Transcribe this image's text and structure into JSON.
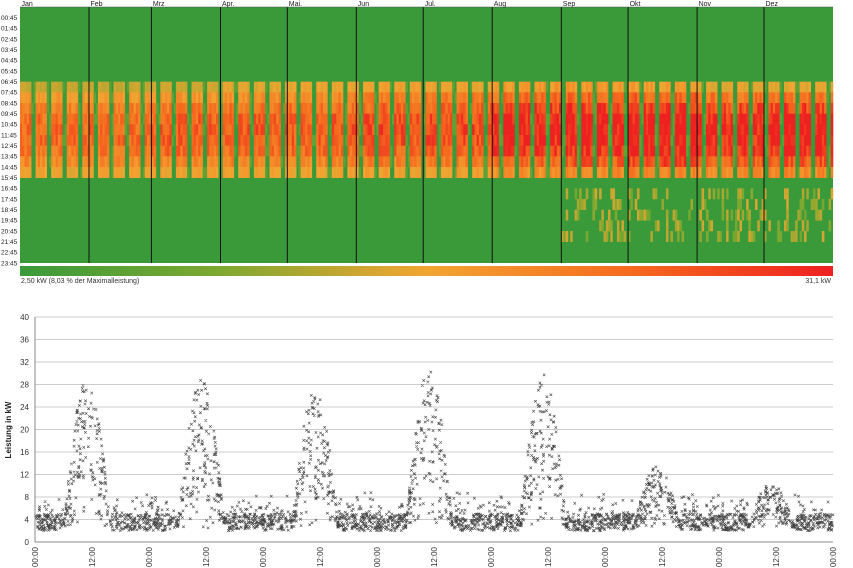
{
  "chart_data": [
    {
      "type": "heatmap",
      "title": "",
      "x_categories": [
        "Jan",
        "Feb",
        "Mrz",
        "Apr.",
        "Mai.",
        "Jun",
        "Jul.",
        "Aug",
        "Sep",
        "Okt",
        "Nov",
        "Dez"
      ],
      "y_categories": [
        "00:45",
        "01:45",
        "02:45",
        "03:45",
        "04:45",
        "05:45",
        "06:45",
        "07:45",
        "08:45",
        "09:45",
        "10:45",
        "11:45",
        "12:45",
        "13:45",
        "14:45",
        "15:45",
        "16:45",
        "17:45",
        "18:45",
        "19:45",
        "20:45",
        "21:45",
        "22:45",
        "23:45"
      ],
      "colorbar": {
        "min_label": "2,50 kW (8,03 % der Maximalleistung)",
        "max_label": "31,1 kW",
        "min_value": 2.5,
        "max_value": 31.1,
        "colors": [
          "#3a9a3a",
          "#7fa830",
          "#f2a531",
          "#f56a1e",
          "#ee2020"
        ]
      },
      "daylight_profile": {
        "day_start_hour_by_month": [
          7.0,
          7.0,
          7.0,
          6.7,
          6.5,
          6.5,
          6.5,
          6.6,
          6.7,
          6.8,
          6.9,
          7.0
        ],
        "day_end_hour_by_month": [
          15.6,
          15.6,
          15.6,
          15.6,
          15.6,
          15.6,
          15.6,
          15.6,
          15.6,
          15.6,
          15.6,
          15.6
        ],
        "peak_level_by_month": [
          0.45,
          0.45,
          0.5,
          0.5,
          0.5,
          0.55,
          0.55,
          0.7,
          0.75,
          0.8,
          0.7,
          0.75
        ]
      }
    },
    {
      "type": "scatter",
      "title": "",
      "xlabel": "",
      "ylabel": "Leistung in kW",
      "ylim": [
        0,
        40
      ],
      "yticks": [
        0,
        4,
        8,
        12,
        16,
        20,
        24,
        28,
        32,
        36,
        40
      ],
      "xtick_labels": [
        "00:00",
        "12:00",
        "00:00",
        "12:00",
        "00:00",
        "12:00",
        "00:00",
        "12:00",
        "00:00",
        "12:00",
        "00:00",
        "12:00",
        "00:00",
        "12:00",
        "00:00"
      ],
      "grid": true,
      "marker": "x",
      "day_peaks_kw": [
        29.5,
        29.2,
        27.3,
        31.0,
        30.0,
        13.5,
        10.5
      ],
      "night_baseline_kw": 3.5
    }
  ]
}
